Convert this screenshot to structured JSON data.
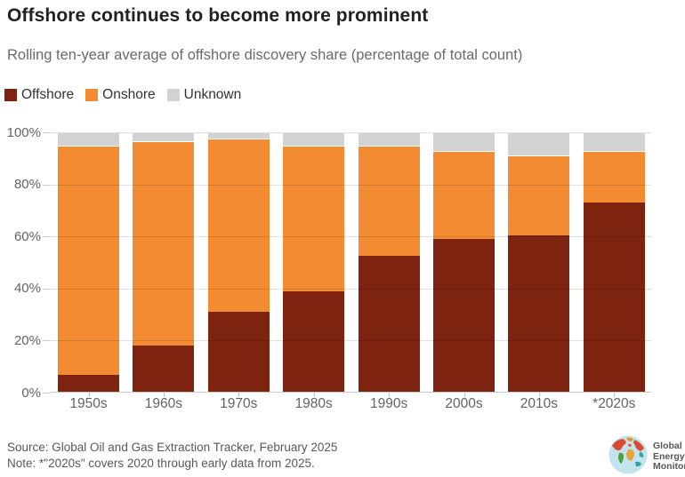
{
  "header": {
    "title": "Offshore continues to become more prominent",
    "subtitle": "Rolling ten-year average of offshore discovery share (percentage of total count)"
  },
  "legend": [
    {
      "label": "Offshore",
      "color": "#7E2310"
    },
    {
      "label": "Onshore",
      "color": "#F28B32"
    },
    {
      "label": "Unknown",
      "color": "#D2D2D2"
    }
  ],
  "chart_data": {
    "type": "bar",
    "stacked": true,
    "title": "Offshore continues to become more prominent",
    "subtitle": "Rolling ten-year average of offshore discovery share (percentage of total count)",
    "categories": [
      "1950s",
      "1960s",
      "1970s",
      "1980s",
      "1990s",
      "2000s",
      "2010s",
      "*2020s"
    ],
    "series": [
      {
        "name": "Offshore",
        "color": "#7E2310",
        "values": [
          7,
          18,
          31,
          39,
          52.5,
          59,
          60.5,
          73
        ]
      },
      {
        "name": "Onshore",
        "color": "#F28B32",
        "values": [
          88,
          78.5,
          66.5,
          56,
          42.5,
          34,
          30.5,
          20
        ]
      },
      {
        "name": "Unknown",
        "color": "#D2D2D2",
        "values": [
          5,
          3.5,
          2.5,
          5,
          5,
          7,
          9,
          7
        ]
      }
    ],
    "ylabel": "",
    "xlabel": "",
    "ylim": [
      0,
      100
    ],
    "yticks": [
      0,
      20,
      40,
      60,
      80,
      100
    ],
    "ytick_labels": [
      "0%",
      "20%",
      "40%",
      "60%",
      "80%",
      "100%"
    ],
    "grid": true,
    "legend_position": "top"
  },
  "footer": {
    "source": "Source: Global Oil and Gas Extraction Tracker, February 2025",
    "note": "Note: *\"2020s\" covers 2020 through early data from 2025.",
    "logo_lines": [
      "Global",
      "Energy",
      "Monitor"
    ]
  }
}
